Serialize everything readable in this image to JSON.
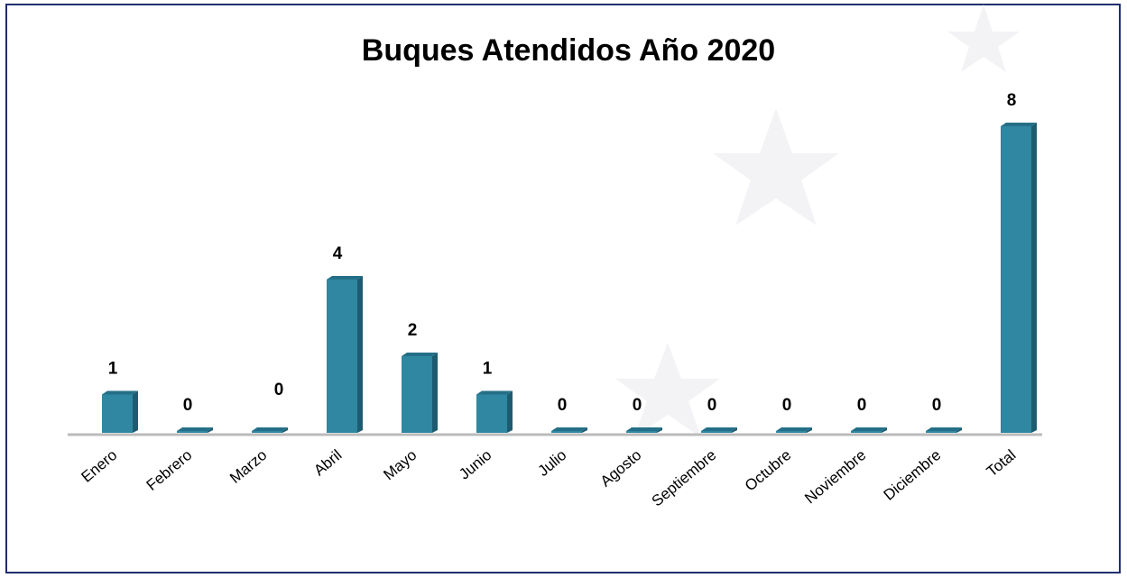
{
  "chart_data": {
    "type": "bar",
    "title": "Buques Atendidos Año 2020",
    "categories": [
      "Enero",
      "Febrero",
      "Marzo",
      "Abril",
      "Mayo",
      "Junio",
      "Julio",
      "Agosto",
      "Septiembre",
      "Octubre",
      "Noviembre",
      "Diciembre",
      "Total"
    ],
    "values": [
      1,
      0,
      0,
      4,
      2,
      1,
      0,
      0,
      0,
      0,
      0,
      0,
      8
    ],
    "color": "#2f87a1"
  }
}
